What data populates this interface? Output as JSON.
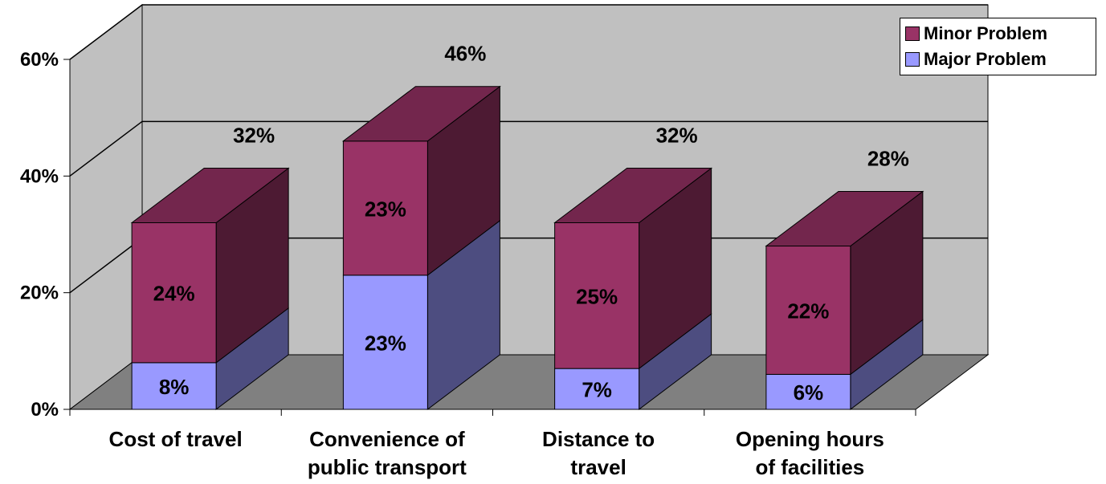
{
  "chart_data": {
    "type": "bar",
    "stacked": true,
    "style": "3d",
    "categories": [
      [
        "Cost of travel"
      ],
      [
        "Convenience of",
        "public transport"
      ],
      [
        "Distance to",
        "travel"
      ],
      [
        "Opening hours",
        "of facilities"
      ]
    ],
    "series": [
      {
        "name": "Major Problem",
        "values": [
          8,
          23,
          7,
          6
        ],
        "labels": [
          "8%",
          "23%",
          "7%",
          "6%"
        ],
        "color": "#9999ff"
      },
      {
        "name": "Minor Problem",
        "values": [
          24,
          23,
          25,
          22
        ],
        "labels": [
          "24%",
          "23%",
          "25%",
          "22%"
        ],
        "color": "#993366"
      }
    ],
    "totals": [
      32,
      46,
      32,
      28
    ],
    "total_labels": [
      "32%",
      "46%",
      "32%",
      "28%"
    ],
    "ylim": [
      0,
      60
    ],
    "y_ticks": [
      0,
      20,
      40,
      60
    ],
    "y_tick_labels": [
      "0%",
      "20%",
      "40%",
      "60%"
    ],
    "grid": true,
    "legend_position": "top-right",
    "colors": {
      "wall": "#c0c0c0",
      "floor": "#808080"
    }
  }
}
